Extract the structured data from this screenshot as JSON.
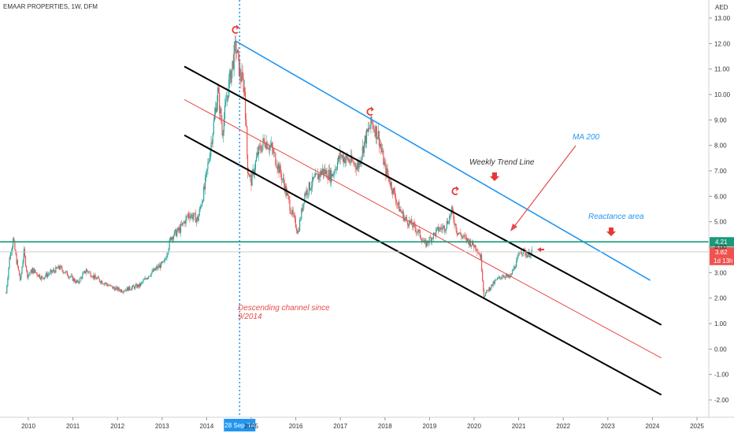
{
  "chart_data": {
    "type": "candlestick",
    "title": "EMAAR PROPERTIES, 1W, DFM",
    "currency": "AED",
    "x_ticks": [
      "2010",
      "2011",
      "2012",
      "2013",
      "2014",
      "2015",
      "2016",
      "2017",
      "2018",
      "2019",
      "2020",
      "2021",
      "2022",
      "2023",
      "2024",
      "2025"
    ],
    "y_ticks": [
      "13.00",
      "12.00",
      "11.00",
      "10.00",
      "9.00",
      "8.00",
      "7.00",
      "6.00",
      "5.00",
      "4.00",
      "3.00",
      "2.00",
      "1.00",
      "0.00",
      "-1.00",
      "-2.00"
    ],
    "ylim": [
      -2.6,
      13.4
    ],
    "xlim": [
      2009.5,
      2025.85
    ],
    "price_series": [
      {
        "t": 2009.5,
        "p": 2.2
      },
      {
        "t": 2009.58,
        "p": 3.6
      },
      {
        "t": 2009.66,
        "p": 4.3
      },
      {
        "t": 2009.74,
        "p": 3.4
      },
      {
        "t": 2009.82,
        "p": 2.7
      },
      {
        "t": 2009.9,
        "p": 3.8
      },
      {
        "t": 2009.98,
        "p": 2.9
      },
      {
        "t": 2010.1,
        "p": 3.1
      },
      {
        "t": 2010.3,
        "p": 2.8
      },
      {
        "t": 2010.5,
        "p": 3.0
      },
      {
        "t": 2010.7,
        "p": 3.2
      },
      {
        "t": 2010.9,
        "p": 2.9
      },
      {
        "t": 2011.1,
        "p": 2.6
      },
      {
        "t": 2011.3,
        "p": 3.1
      },
      {
        "t": 2011.5,
        "p": 2.8
      },
      {
        "t": 2011.7,
        "p": 2.6
      },
      {
        "t": 2011.9,
        "p": 2.4
      },
      {
        "t": 2012.1,
        "p": 2.3
      },
      {
        "t": 2012.3,
        "p": 2.4
      },
      {
        "t": 2012.5,
        "p": 2.5
      },
      {
        "t": 2012.7,
        "p": 2.9
      },
      {
        "t": 2012.9,
        "p": 3.2
      },
      {
        "t": 2013.05,
        "p": 3.4
      },
      {
        "t": 2013.2,
        "p": 4.4
      },
      {
        "t": 2013.4,
        "p": 4.7
      },
      {
        "t": 2013.6,
        "p": 5.3
      },
      {
        "t": 2013.8,
        "p": 5.1
      },
      {
        "t": 2013.95,
        "p": 6.3
      },
      {
        "t": 2014.1,
        "p": 8.1
      },
      {
        "t": 2014.25,
        "p": 10.1
      },
      {
        "t": 2014.35,
        "p": 8.6
      },
      {
        "t": 2014.5,
        "p": 10.4
      },
      {
        "t": 2014.65,
        "p": 11.9
      },
      {
        "t": 2014.75,
        "p": 10.8
      },
      {
        "t": 2014.85,
        "p": 10.2
      },
      {
        "t": 2014.92,
        "p": 7.1
      },
      {
        "t": 2015.0,
        "p": 6.6
      },
      {
        "t": 2015.15,
        "p": 7.7
      },
      {
        "t": 2015.3,
        "p": 8.2
      },
      {
        "t": 2015.45,
        "p": 7.9
      },
      {
        "t": 2015.6,
        "p": 7.2
      },
      {
        "t": 2015.75,
        "p": 6.4
      },
      {
        "t": 2015.9,
        "p": 5.4
      },
      {
        "t": 2016.05,
        "p": 4.6
      },
      {
        "t": 2016.2,
        "p": 6.1
      },
      {
        "t": 2016.4,
        "p": 6.6
      },
      {
        "t": 2016.6,
        "p": 7.0
      },
      {
        "t": 2016.8,
        "p": 6.8
      },
      {
        "t": 2017.0,
        "p": 7.6
      },
      {
        "t": 2017.2,
        "p": 7.4
      },
      {
        "t": 2017.4,
        "p": 7.2
      },
      {
        "t": 2017.55,
        "p": 8.2
      },
      {
        "t": 2017.7,
        "p": 8.9
      },
      {
        "t": 2017.85,
        "p": 8.4
      },
      {
        "t": 2018.0,
        "p": 7.1
      },
      {
        "t": 2018.15,
        "p": 6.4
      },
      {
        "t": 2018.3,
        "p": 5.6
      },
      {
        "t": 2018.45,
        "p": 5.1
      },
      {
        "t": 2018.6,
        "p": 4.9
      },
      {
        "t": 2018.75,
        "p": 4.6
      },
      {
        "t": 2018.9,
        "p": 4.1
      },
      {
        "t": 2019.05,
        "p": 4.4
      },
      {
        "t": 2019.2,
        "p": 4.7
      },
      {
        "t": 2019.35,
        "p": 4.8
      },
      {
        "t": 2019.5,
        "p": 5.4
      },
      {
        "t": 2019.62,
        "p": 4.6
      },
      {
        "t": 2019.75,
        "p": 4.4
      },
      {
        "t": 2019.9,
        "p": 4.2
      },
      {
        "t": 2020.05,
        "p": 4.0
      },
      {
        "t": 2020.15,
        "p": 3.6
      },
      {
        "t": 2020.22,
        "p": 2.1
      },
      {
        "t": 2020.35,
        "p": 2.4
      },
      {
        "t": 2020.5,
        "p": 2.7
      },
      {
        "t": 2020.65,
        "p": 2.9
      },
      {
        "t": 2020.8,
        "p": 2.8
      },
      {
        "t": 2020.95,
        "p": 3.4
      },
      {
        "t": 2021.05,
        "p": 3.9
      },
      {
        "t": 2021.2,
        "p": 3.7
      },
      {
        "t": 2021.3,
        "p": 3.8
      }
    ],
    "channel_lines": [
      {
        "name": "upper-black",
        "color": "#000000",
        "from": {
          "t": 2013.5,
          "p": 11.1
        },
        "to": {
          "t": 2024.2,
          "p": 0.95
        }
      },
      {
        "name": "mid-red",
        "color": "#e84a4a",
        "from": {
          "t": 2013.5,
          "p": 9.8
        },
        "to": {
          "t": 2024.2,
          "p": -0.35
        }
      },
      {
        "name": "lower-black",
        "color": "#000000",
        "from": {
          "t": 2013.5,
          "p": 8.4
        },
        "to": {
          "t": 2024.2,
          "p": -1.8
        }
      },
      {
        "name": "trend-blue",
        "color": "#2196f3",
        "from": {
          "t": 2014.65,
          "p": 12.1
        },
        "to": {
          "t": 2023.95,
          "p": 2.7
        }
      }
    ],
    "horizontal_lines": [
      {
        "name": "resistance",
        "color": "#1a9a7a",
        "price": 4.21
      },
      {
        "name": "current",
        "color": "#cccccc",
        "price": 3.82
      }
    ],
    "vertical_marker": {
      "t": 2014.74,
      "color": "#2196f3",
      "label": "28 Sep '14"
    },
    "annotations": {
      "descending_channel": "Descending channel since\n9/2014",
      "weekly_trend_line": "Weekly Trend Line",
      "ma200": "MA 200",
      "reactance": "Reactance area"
    },
    "price_tags": {
      "resistance": "4.21",
      "current": "3.82",
      "countdown": "1d 13h"
    },
    "colors": {
      "up": "#26a69a",
      "down": "#ef5350",
      "annot_red": "#e84a4a",
      "annot_blue": "#2196f3",
      "annot_dark": "#333333"
    }
  }
}
